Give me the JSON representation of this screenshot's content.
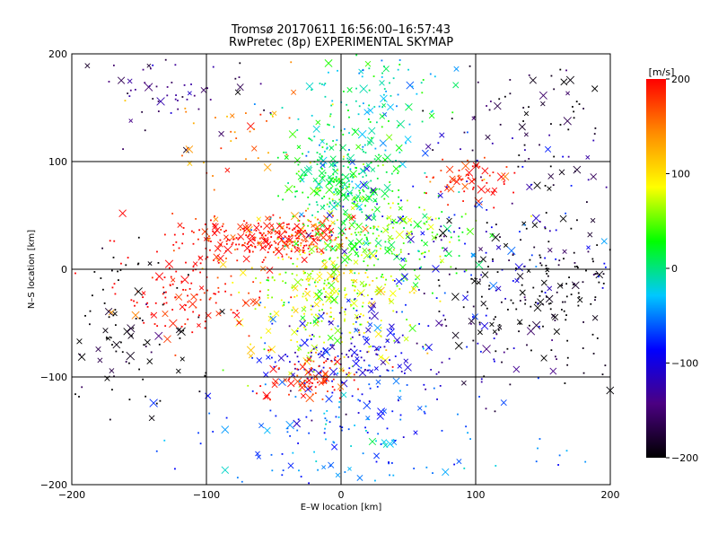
{
  "chart_data": {
    "type": "scatter",
    "title": "Tromsø 20170611 16:56:00–16:57:43",
    "subtitle": "RwPretec (8p) EXPERIMENTAL SKYMAP",
    "xlabel": "E–W location [km]",
    "ylabel": "N–S location [km]",
    "xlim": [
      -200,
      200
    ],
    "ylim": [
      -200,
      200
    ],
    "xticks": [
      -200,
      -100,
      0,
      100,
      200
    ],
    "yticks": [
      -200,
      -100,
      0,
      100,
      200
    ],
    "grid": true,
    "markers": [
      "x",
      "dot"
    ],
    "colorbar": {
      "label": "[m/s]",
      "range": [
        -200,
        200
      ],
      "ticks": [
        200,
        100,
        0,
        -100,
        -200
      ],
      "colormap": [
        "#000000",
        "#4b0082",
        "#0000ff",
        "#00c8ff",
        "#00ff00",
        "#ffff00",
        "#ff8c00",
        "#ff0000"
      ]
    },
    "clusters": [
      {
        "center": [
          -60,
          30
        ],
        "spread": [
          30,
          10
        ],
        "value": 200,
        "count": 220
      },
      {
        "center": [
          -20,
          30
        ],
        "spread": [
          15,
          10
        ],
        "value": 180,
        "count": 80
      },
      {
        "center": [
          0,
          80
        ],
        "spread": [
          20,
          25
        ],
        "value": 20,
        "count": 260
      },
      {
        "center": [
          30,
          30
        ],
        "spread": [
          30,
          25
        ],
        "value": 40,
        "count": 220
      },
      {
        "center": [
          -10,
          -30
        ],
        "spread": [
          30,
          30
        ],
        "value": 80,
        "count": 320
      },
      {
        "center": [
          10,
          -80
        ],
        "spread": [
          35,
          25
        ],
        "value": -100,
        "count": 200
      },
      {
        "center": [
          -20,
          -100
        ],
        "spread": [
          20,
          10
        ],
        "value": 190,
        "count": 80
      },
      {
        "center": [
          -110,
          -20
        ],
        "spread": [
          30,
          25
        ],
        "value": 200,
        "count": 140
      },
      {
        "center": [
          150,
          -20
        ],
        "spread": [
          40,
          40
        ],
        "value": -200,
        "count": 220
      },
      {
        "center": [
          -160,
          -60
        ],
        "spread": [
          30,
          40
        ],
        "value": -200,
        "count": 100
      },
      {
        "center": [
          20,
          150
        ],
        "spread": [
          30,
          30
        ],
        "value": -10,
        "count": 140
      },
      {
        "center": [
          100,
          85
        ],
        "spread": [
          15,
          10
        ],
        "value": 195,
        "count": 60
      },
      {
        "center": [
          150,
          140
        ],
        "spread": [
          40,
          40
        ],
        "value": -180,
        "count": 80
      },
      {
        "center": [
          -120,
          170
        ],
        "spread": [
          40,
          20
        ],
        "value": -150,
        "count": 60
      },
      {
        "center": [
          100,
          20
        ],
        "spread": [
          60,
          50
        ],
        "value": -100,
        "count": 150
      },
      {
        "center": [
          0,
          -160
        ],
        "spread": [
          60,
          30
        ],
        "value": -60,
        "count": 160
      },
      {
        "center": [
          -70,
          120
        ],
        "spread": [
          25,
          25
        ],
        "value": 140,
        "count": 40
      }
    ]
  }
}
